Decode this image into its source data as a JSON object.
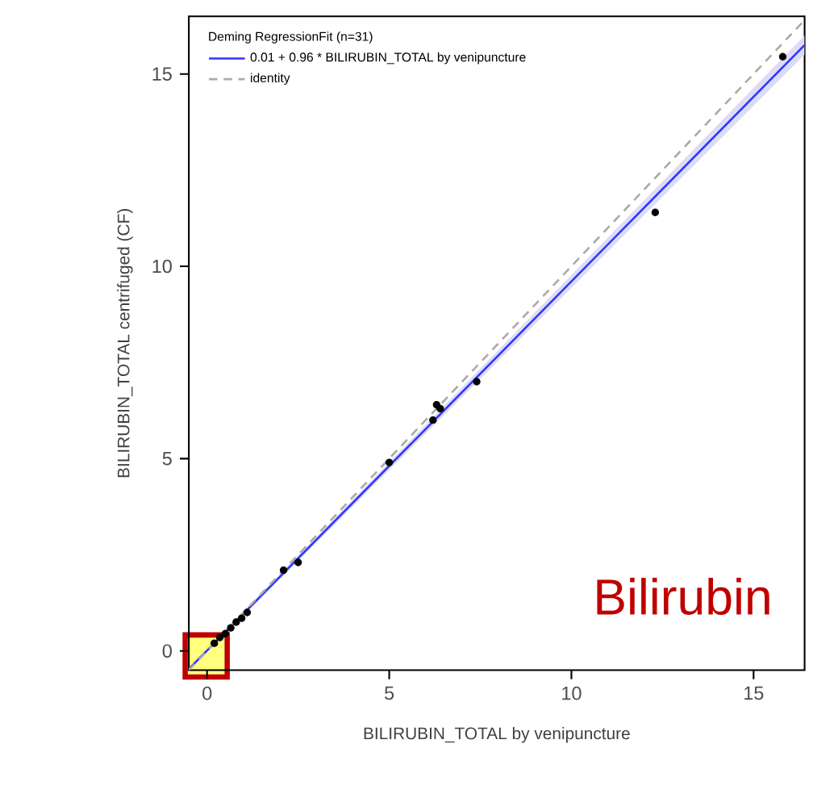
{
  "chart_data": {
    "type": "scatter",
    "xlabel": "BILIRUBIN_TOTAL by venipuncture",
    "ylabel": "BILIRUBIN_TOTAL centrifuged (CF)",
    "legend_title": "Deming RegressionFit (n=31)",
    "annotations": [
      "Bilirubin"
    ],
    "xlim": [
      -0.5,
      16.4
    ],
    "ylim": [
      -0.5,
      16.5
    ],
    "xticks": [
      0,
      5,
      10,
      15
    ],
    "yticks": [
      0,
      5,
      10,
      15
    ],
    "grid": false,
    "legend": "top left",
    "series": [
      {
        "color": "#000000",
        "x": [
          15.8,
          12.3,
          7.4,
          6.3,
          6.4,
          6.2,
          5.0,
          2.5,
          2.1,
          1.1,
          0.95,
          0.8,
          0.65,
          0.5,
          0.35,
          0.2
        ],
        "values": [
          15.45,
          11.4,
          7.0,
          6.4,
          6.3,
          6.0,
          4.9,
          2.3,
          2.1,
          1.0,
          0.85,
          0.75,
          0.6,
          0.45,
          0.35,
          0.2
        ]
      },
      {
        "type": "line",
        "name": "0.01 + 0.96 * BILIRUBIN_TOTAL by venipuncture",
        "color": "#3333ff",
        "line_style": "solid",
        "x": [
          -0.5,
          16.4
        ],
        "values": [
          -0.47,
          15.75
        ],
        "lower": [
          -0.5,
          15.5
        ],
        "upper": [
          -0.44,
          16.0
        ]
      },
      {
        "type": "line",
        "name": "identity",
        "color": "#aaaaaa",
        "line_style": "dashed",
        "x": [
          -0.5,
          16.4
        ],
        "values": [
          -0.5,
          16.4
        ]
      }
    ]
  }
}
